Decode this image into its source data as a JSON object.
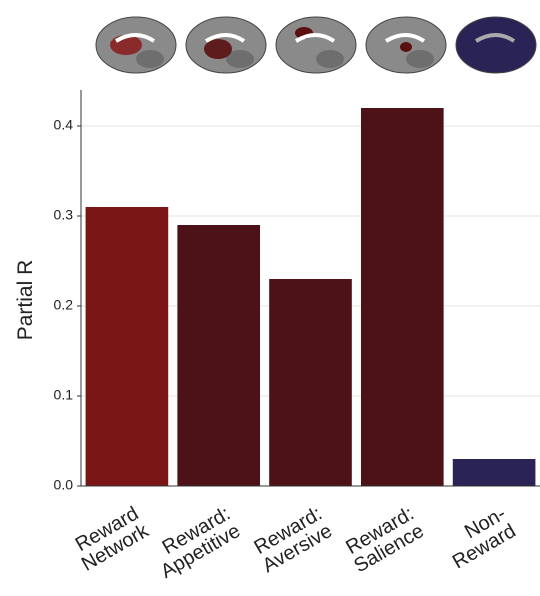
{
  "chart_data": {
    "type": "bar",
    "y_label": "Partial R",
    "categories": [
      [
        "Reward",
        "Network"
      ],
      [
        "Reward:",
        "Appetitive"
      ],
      [
        "Reward:",
        "Aversive"
      ],
      [
        "Reward:",
        "Salience"
      ],
      [
        "Non-",
        "Reward"
      ]
    ],
    "values": [
      0.31,
      0.29,
      0.23,
      0.42,
      0.03
    ],
    "colors": [
      "#7a1515",
      "#4d1218",
      "#4d1218",
      "#4d1218",
      "#2a2356"
    ],
    "ylim": [
      0,
      0.44
    ],
    "yticks": [
      {
        "value": 0,
        "label": "0.0"
      },
      0.1,
      0.2,
      0.3,
      0.4
    ],
    "grid": true
  }
}
